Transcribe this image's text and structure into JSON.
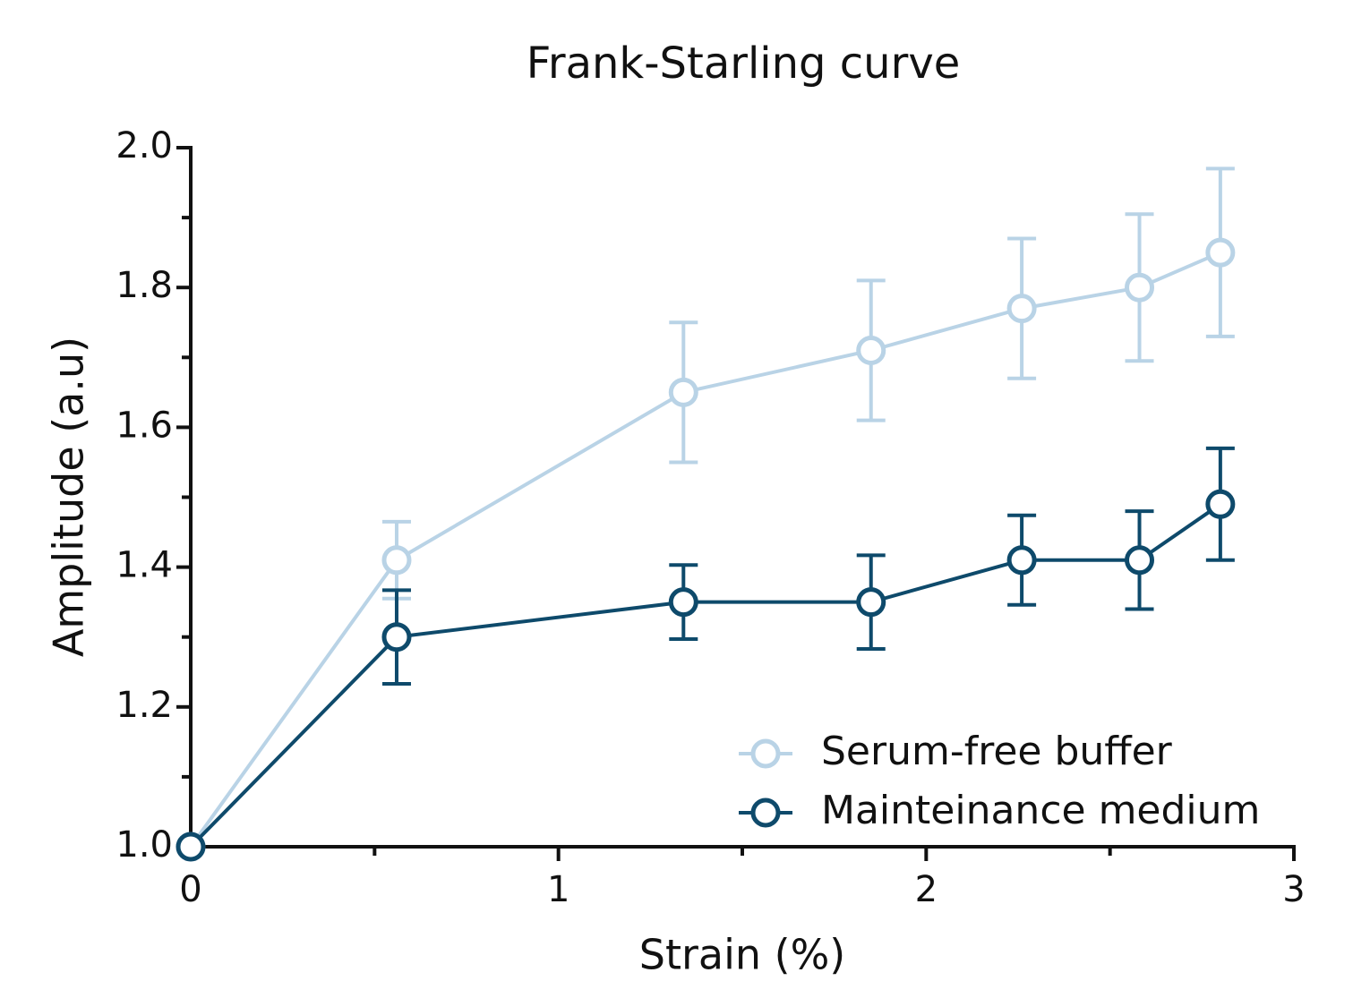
{
  "chart_data": {
    "type": "line",
    "title": "Frank-Starling curve",
    "x_label": "Strain (%)",
    "y_label": "Amplitude (a.u)",
    "x": [
      0,
      0.56,
      1.34,
      1.85,
      2.26,
      2.58,
      2.8
    ],
    "series": [
      {
        "name": "Serum-free buffer",
        "color": "#b9d3e6",
        "values": [
          1.0,
          1.41,
          1.65,
          1.71,
          1.77,
          1.8,
          1.85
        ],
        "errors": [
          0,
          0.055,
          0.1,
          0.1,
          0.1,
          0.105,
          0.12
        ]
      },
      {
        "name": "Mainteinance medium",
        "color": "#0e4a6b",
        "values": [
          1.0,
          1.3,
          1.35,
          1.35,
          1.41,
          1.41,
          1.49
        ],
        "errors": [
          0,
          0.067,
          0.053,
          0.067,
          0.064,
          0.07,
          0.08
        ]
      }
    ],
    "xlim": [
      0,
      3
    ],
    "xticks": [
      0,
      1,
      2,
      3
    ],
    "x_minor_ticks": [
      0.5,
      1.5,
      2.5
    ],
    "ylim": [
      1.0,
      2.0
    ],
    "yticks": [
      {
        "value": 1.0,
        "label": "1.0"
      },
      1.2,
      1.4,
      1.6,
      1.8,
      {
        "value": 2.0,
        "label": "2.0"
      }
    ],
    "y_minor_ticks": [
      1.1,
      1.3,
      1.5,
      1.7,
      1.9
    ],
    "legend": "lower right",
    "grid": false
  }
}
